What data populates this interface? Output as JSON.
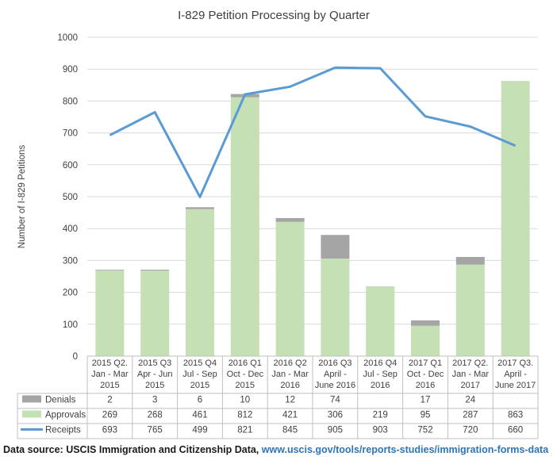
{
  "chart_data": {
    "type": "bar+line",
    "title": "I-829 Petition Processing by Quarter",
    "ylabel": "Number  of I-829 Petitions",
    "ylim": [
      0,
      1000
    ],
    "ytick_step": 100,
    "grid": true,
    "categories": [
      [
        "2015 Q2.",
        "Jan - Mar",
        "2015"
      ],
      [
        "2015 Q3",
        "Apr - Jun",
        "2015"
      ],
      [
        "2015 Q4",
        "Jul - Sep",
        "2015"
      ],
      [
        "2016 Q1",
        "Oct - Dec",
        "2015"
      ],
      [
        "2016 Q2",
        "Jan - Mar",
        "2016"
      ],
      [
        "2016 Q3",
        "April -",
        "June 2016"
      ],
      [
        "2016 Q4",
        "Jul - Sep",
        "2016"
      ],
      [
        "2017 Q1",
        "Oct - Dec",
        "2016"
      ],
      [
        "2017 Q2.",
        "Jan - Mar",
        "2017"
      ],
      [
        "2017 Q3.",
        "April -",
        "June 2017"
      ]
    ],
    "series": [
      {
        "name": "Denials",
        "kind": "bar-stacked-top",
        "color": "#a5a5a5",
        "values": [
          2,
          3,
          6,
          10,
          12,
          74,
          null,
          17,
          24,
          null
        ]
      },
      {
        "name": "Approvals",
        "kind": "bar-stacked-base",
        "color": "#c5e0b4",
        "values": [
          269,
          268,
          461,
          812,
          421,
          306,
          219,
          95,
          287,
          863
        ]
      },
      {
        "name": "Receipts",
        "kind": "line",
        "color": "#5b9bd5",
        "values": [
          693,
          765,
          499,
          821,
          845,
          905,
          903,
          752,
          720,
          660
        ]
      }
    ]
  },
  "source": {
    "label": "Data source: USCIS Immigration and Citizenship Data, ",
    "url": "www.uscis.gov/tools/reports-studies/immigration-forms-data"
  }
}
